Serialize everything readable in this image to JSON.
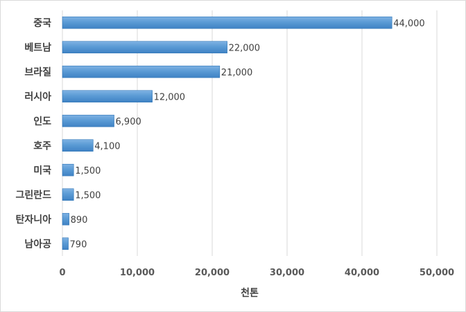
{
  "chart_data": {
    "type": "bar",
    "orientation": "horizontal",
    "categories": [
      "중국",
      "베트남",
      "브라질",
      "러시아",
      "인도",
      "호주",
      "미국",
      "그린란드",
      "탄자니아",
      "남아공"
    ],
    "values": [
      44000,
      22000,
      21000,
      12000,
      6900,
      4100,
      1500,
      1500,
      890,
      790
    ],
    "value_labels": [
      "44,000",
      "22,000",
      "21,000",
      "12,000",
      "6,900",
      "4,100",
      "1,500",
      "1,500",
      "890",
      "790"
    ],
    "x_ticks": [
      "0",
      "10,000",
      "20,000",
      "30,000",
      "40,000",
      "50,000"
    ],
    "xlim": [
      0,
      50000
    ],
    "xlabel": "천톤",
    "ylabel": "",
    "title": "",
    "grid": "vertical",
    "legend": "none",
    "colors": {
      "bar": "#5b9bd5",
      "bar_dark": "#2e75b6",
      "grid": "#d9d9d9"
    }
  }
}
